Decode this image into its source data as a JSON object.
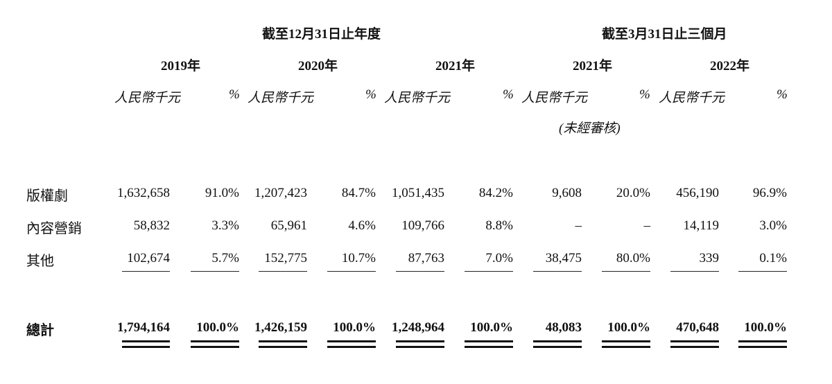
{
  "group_headers": {
    "annual": "截至12月31日止年度",
    "quarter": "截至3月31日止三個月"
  },
  "years": [
    "2019年",
    "2020年",
    "2021年",
    "2021年",
    "2022年"
  ],
  "unit_label": "人民幣千元",
  "pct_label": "%",
  "unaudited": "(未經審核)",
  "rows": [
    {
      "label": "版權劇",
      "values": [
        "1,632,658",
        "91.0%",
        "1,207,423",
        "84.7%",
        "1,051,435",
        "84.2%",
        "9,608",
        "20.0%",
        "456,190",
        "96.9%"
      ]
    },
    {
      "label": "內容營銷",
      "values": [
        "58,832",
        "3.3%",
        "65,961",
        "4.6%",
        "109,766",
        "8.8%",
        "–",
        "–",
        "14,119",
        "3.0%"
      ]
    },
    {
      "label": "其他",
      "values": [
        "102,674",
        "5.7%",
        "152,775",
        "10.7%",
        "87,763",
        "7.0%",
        "38,475",
        "80.0%",
        "339",
        "0.1%"
      ]
    }
  ],
  "total": {
    "label": "總計",
    "values": [
      "1,794,164",
      "100.0%",
      "1,426,159",
      "100.0%",
      "1,248,964",
      "100.0%",
      "48,083",
      "100.0%",
      "470,648",
      "100.0%"
    ]
  }
}
